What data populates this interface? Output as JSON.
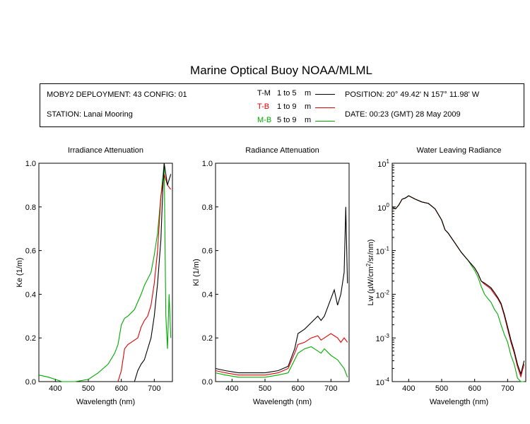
{
  "header": {
    "title": "Marine Optical Buoy NOAA/MLML",
    "deployment": "MOBY2 DEPLOYMENT: 43 CONFIG: 01",
    "station": "STATION: Lanai Mooring",
    "position": "POSITION: 20° 49.42' N   157° 11.98' W",
    "date": "DATE: 00:23 (GMT) 28 May 2009"
  },
  "legend": [
    {
      "code": "T-M",
      "range": "1 to 5",
      "unit": "m",
      "color": "#000000"
    },
    {
      "code": "T-B",
      "range": "1 to 9",
      "unit": "m",
      "color": "#dd0000"
    },
    {
      "code": "M-B",
      "range": "5 to 9",
      "unit": "m",
      "color": "#00aa00"
    }
  ],
  "chart_data": [
    {
      "type": "line",
      "title": "Irradiance Attenuation",
      "xlabel": "Wavelength (nm)",
      "ylabel": "Ke  (1/m)",
      "xlim": [
        350,
        755
      ],
      "ylim": [
        0,
        1
      ],
      "xticks": [
        400,
        500,
        600,
        700
      ],
      "yticks": [
        0,
        0.2,
        0.4,
        0.6,
        0.8,
        1.0
      ],
      "ytick_labels": [
        "0.0",
        "0.2",
        "0.4",
        "0.6",
        "0.8",
        "1.0"
      ],
      "series": [
        {
          "name": "T-M",
          "color": "#000000",
          "x": [
            600,
            620,
            640,
            650,
            660,
            670,
            680,
            690,
            700,
            710,
            720,
            725,
            730,
            740,
            750
          ],
          "y": [
            0.0,
            0.0,
            0.0,
            0.05,
            0.08,
            0.1,
            0.15,
            0.2,
            0.3,
            0.45,
            0.65,
            0.85,
            1.0,
            0.9,
            0.95
          ]
        },
        {
          "name": "T-B",
          "color": "#dd0000",
          "x": [
            590,
            600,
            610,
            620,
            630,
            640,
            650,
            660,
            670,
            680,
            690,
            700,
            710,
            720,
            730,
            740,
            750
          ],
          "y": [
            0.0,
            0.05,
            0.15,
            0.17,
            0.18,
            0.19,
            0.2,
            0.25,
            0.28,
            0.3,
            0.35,
            0.45,
            0.6,
            0.85,
            0.95,
            0.9,
            0.88
          ]
        },
        {
          "name": "M-B",
          "color": "#00aa00",
          "x": [
            350,
            380,
            420,
            460,
            500,
            530,
            560,
            580,
            590,
            600,
            610,
            620,
            640,
            660,
            670,
            680,
            690,
            700,
            710,
            720,
            730,
            735,
            740,
            745,
            750
          ],
          "y": [
            0.03,
            0.02,
            0.0,
            0.0,
            0.01,
            0.04,
            0.08,
            0.13,
            0.17,
            0.26,
            0.29,
            0.3,
            0.33,
            0.4,
            0.44,
            0.47,
            0.5,
            0.58,
            0.68,
            0.85,
            1.0,
            0.3,
            0.15,
            0.4,
            0.2
          ]
        }
      ]
    },
    {
      "type": "line",
      "title": "Radiance Attenuation",
      "xlabel": "Wavelength (nm)",
      "ylabel": "Kl  (1/m)",
      "xlim": [
        350,
        755
      ],
      "ylim": [
        0,
        1
      ],
      "xticks": [
        400,
        500,
        600,
        700
      ],
      "yticks": [
        0,
        0.2,
        0.4,
        0.6,
        0.8,
        1.0
      ],
      "ytick_labels": [
        "0.0",
        "0.2",
        "0.4",
        "0.6",
        "0.8",
        "1.0"
      ],
      "series": [
        {
          "name": "T-M",
          "color": "#000000",
          "x": [
            350,
            380,
            420,
            460,
            500,
            540,
            570,
            590,
            600,
            620,
            640,
            660,
            670,
            680,
            700,
            710,
            720,
            730,
            740,
            745,
            750
          ],
          "y": [
            0.06,
            0.05,
            0.04,
            0.04,
            0.04,
            0.05,
            0.07,
            0.15,
            0.22,
            0.24,
            0.27,
            0.3,
            0.28,
            0.3,
            0.38,
            0.42,
            0.35,
            0.4,
            0.5,
            0.8,
            0.45
          ]
        },
        {
          "name": "T-B",
          "color": "#dd0000",
          "x": [
            350,
            380,
            420,
            460,
            500,
            540,
            570,
            590,
            600,
            620,
            640,
            660,
            670,
            680,
            700,
            720,
            730,
            740,
            750
          ],
          "y": [
            0.05,
            0.04,
            0.03,
            0.03,
            0.03,
            0.04,
            0.06,
            0.13,
            0.17,
            0.18,
            0.2,
            0.21,
            0.19,
            0.2,
            0.22,
            0.2,
            0.18,
            0.2,
            0.18
          ]
        },
        {
          "name": "M-B",
          "color": "#00aa00",
          "x": [
            350,
            380,
            420,
            460,
            500,
            540,
            570,
            590,
            600,
            620,
            640,
            660,
            670,
            680,
            700,
            720,
            730,
            740,
            750
          ],
          "y": [
            0.04,
            0.03,
            0.02,
            0.02,
            0.02,
            0.03,
            0.04,
            0.1,
            0.13,
            0.15,
            0.16,
            0.14,
            0.13,
            0.15,
            0.12,
            0.1,
            0.08,
            0.06,
            0.02
          ]
        }
      ]
    },
    {
      "type": "line",
      "title": "Water Leaving Radiance",
      "xlabel": "Wavelength (nm)",
      "ylabel_main": "Lw  (",
      "ylabel_mu": "µ",
      "ylabel_rest": "W/cm",
      "ylabel_sup": "2",
      "ylabel_tail": "/sr/nm)",
      "yscale": "log",
      "xlim": [
        350,
        755
      ],
      "ylim": [
        0.0001,
        10
      ],
      "xticks": [
        400,
        500,
        600,
        700
      ],
      "ytick_base": "10",
      "ytick_exponents": [
        "1",
        "0",
        "-1",
        "-2",
        "-3",
        "-4"
      ],
      "series": [
        {
          "name": "T-M",
          "color": "#000000",
          "x": [
            350,
            360,
            370,
            380,
            390,
            400,
            420,
            440,
            460,
            480,
            500,
            510,
            520,
            540,
            560,
            580,
            600,
            610,
            620,
            630,
            640,
            650,
            660,
            670,
            680,
            690,
            700,
            710,
            720,
            730,
            740,
            750
          ],
          "y": [
            1.0,
            0.9,
            1.1,
            1.5,
            1.6,
            1.8,
            1.5,
            1.3,
            1.2,
            0.9,
            0.5,
            0.3,
            0.25,
            0.15,
            0.09,
            0.06,
            0.04,
            0.03,
            0.02,
            0.018,
            0.016,
            0.014,
            0.011,
            0.0085,
            0.0062,
            0.0035,
            0.0018,
            0.0009,
            0.0005,
            0.00025,
            0.00015,
            0.0003
          ]
        },
        {
          "name": "T-B",
          "color": "#dd0000",
          "x": [
            350,
            360,
            370,
            380,
            390,
            400,
            420,
            440,
            460,
            480,
            500,
            510,
            520,
            540,
            560,
            580,
            600,
            610,
            620,
            630,
            640,
            650,
            660,
            670,
            680,
            690,
            700,
            710,
            720,
            730,
            740,
            750
          ],
          "y": [
            1.0,
            0.9,
            1.1,
            1.5,
            1.6,
            1.8,
            1.5,
            1.3,
            1.2,
            0.9,
            0.5,
            0.3,
            0.25,
            0.15,
            0.09,
            0.06,
            0.04,
            0.03,
            0.02,
            0.017,
            0.015,
            0.013,
            0.01,
            0.008,
            0.0058,
            0.0032,
            0.0016,
            0.0008,
            0.00045,
            0.00022,
            0.00013,
            0.00025
          ]
        },
        {
          "name": "M-B",
          "color": "#00aa00",
          "x": [
            350,
            360,
            370,
            380,
            390,
            400,
            420,
            440,
            460,
            480,
            500,
            510,
            520,
            540,
            560,
            580,
            600,
            610,
            620,
            630,
            640,
            650,
            660,
            670,
            680,
            690,
            700,
            710,
            720,
            730,
            740,
            750
          ],
          "y": [
            1.0,
            0.9,
            1.1,
            1.5,
            1.6,
            1.8,
            1.5,
            1.3,
            1.2,
            0.9,
            0.5,
            0.3,
            0.25,
            0.15,
            0.09,
            0.06,
            0.035,
            0.025,
            0.015,
            0.01,
            0.008,
            0.0065,
            0.0045,
            0.0035,
            0.002,
            0.0012,
            0.0008,
            0.0004,
            0.00025,
            0.00012,
            0.0001,
            0.0001
          ]
        }
      ]
    }
  ]
}
